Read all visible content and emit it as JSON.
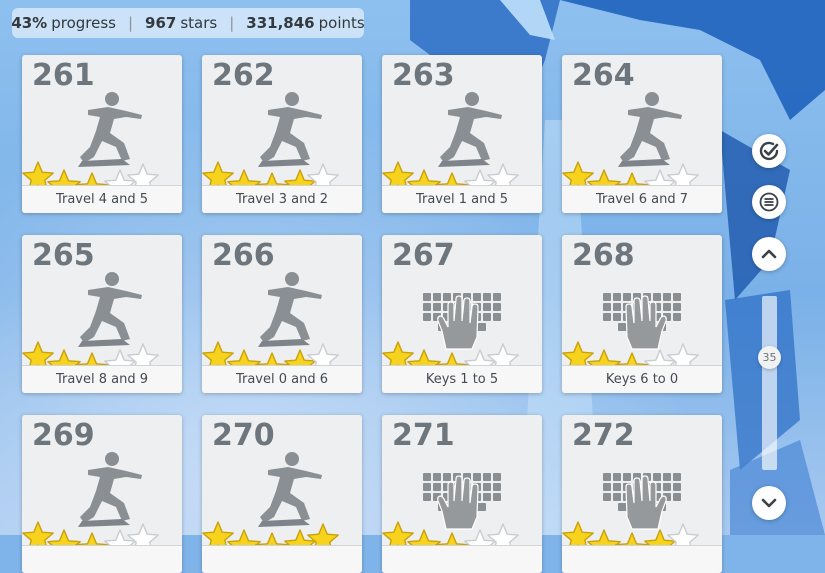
{
  "stats": {
    "progress_value": "43%",
    "progress_word": "progress",
    "stars_value": "967",
    "stars_word": "stars",
    "points_value": "331,846",
    "points_word": "points",
    "separator": "|"
  },
  "lessons": [
    {
      "number": "261",
      "label": "Travel 4 and 5",
      "kind": "travel",
      "stars": 3
    },
    {
      "number": "262",
      "label": "Travel 3 and 2",
      "kind": "travel",
      "stars": 4
    },
    {
      "number": "263",
      "label": "Travel 1 and 5",
      "kind": "travel",
      "stars": 3
    },
    {
      "number": "264",
      "label": "Travel 6 and 7",
      "kind": "travel",
      "stars": 3
    },
    {
      "number": "265",
      "label": "Travel 8 and 9",
      "kind": "travel",
      "stars": 3
    },
    {
      "number": "266",
      "label": "Travel 0 and 6",
      "kind": "travel",
      "stars": 4
    },
    {
      "number": "267",
      "label": "Keys 1 to 5",
      "kind": "keys-left",
      "stars": 3
    },
    {
      "number": "268",
      "label": "Keys 6 to 0",
      "kind": "keys-right",
      "stars": 3
    },
    {
      "number": "269",
      "label": "",
      "kind": "travel",
      "stars": 3
    },
    {
      "number": "270",
      "label": "",
      "kind": "travel",
      "stars": 5
    },
    {
      "number": "271",
      "label": "",
      "kind": "keys-left",
      "stars": 3
    },
    {
      "number": "272",
      "label": "",
      "kind": "keys-right",
      "stars": 4
    }
  ],
  "icons": {
    "travel": "stretching-figure-icon",
    "keys-left": "keyboard-left-hand-icon",
    "keys-right": "keyboard-right-hand-icon",
    "star_filled": "star-filled-icon",
    "star_empty": "star-empty-icon",
    "check": "check-circle-icon",
    "menu": "menu-icon",
    "up": "chevron-up-icon",
    "down": "chevron-down-icon"
  },
  "scroll": {
    "indicator_value": "35"
  },
  "colors": {
    "star_filled": "#f7d31e",
    "star_empty": "#ffffff",
    "figure": "#8a8f94",
    "number": "#6e767d"
  }
}
